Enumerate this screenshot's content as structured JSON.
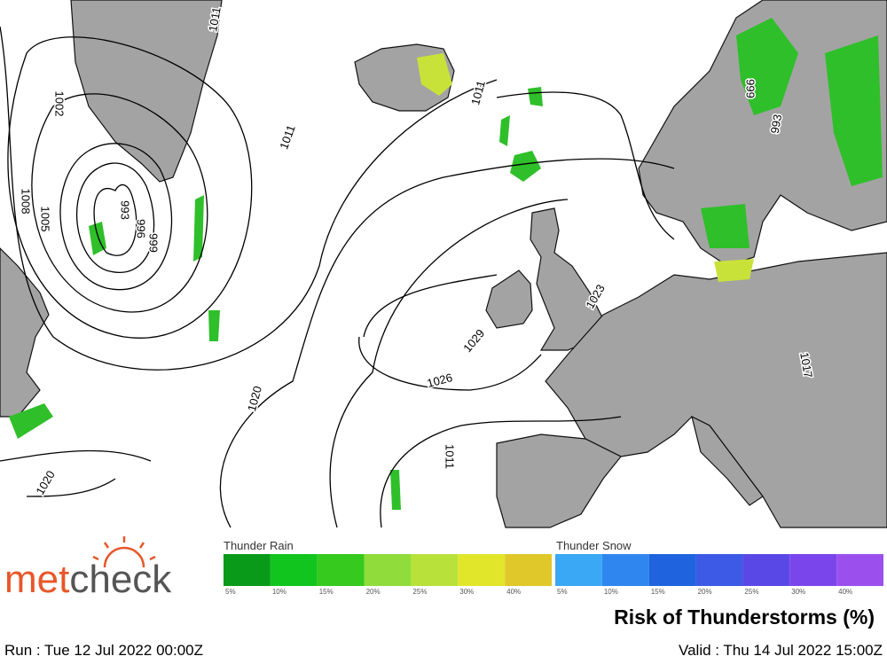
{
  "logo": {
    "parts": [
      "met",
      "check"
    ]
  },
  "map": {
    "isobar_labels": [
      "1011",
      "1002",
      "1008",
      "1005",
      "993",
      "996",
      "999",
      "1011",
      "1011",
      "1020",
      "1020",
      "1029",
      "1026",
      "1023",
      "999",
      "993",
      "1011",
      "1017"
    ]
  },
  "legend": {
    "rain": {
      "title": "Thunder Rain",
      "labels": [
        "5%",
        "10%",
        "15%",
        "20%",
        "25%",
        "30%",
        "40%"
      ],
      "colors": [
        "#0a9a1a",
        "#12c41e",
        "#36c91e",
        "#8fdc3a",
        "#b8e23a",
        "#e2e62a",
        "#e0c82a"
      ]
    },
    "snow": {
      "title": "Thunder Snow",
      "labels": [
        "5%",
        "10%",
        "15%",
        "20%",
        "25%",
        "30%",
        "40%"
      ],
      "colors": [
        "#3aa8f5",
        "#2f86ee",
        "#1f64de",
        "#3d5ae6",
        "#5a48e6",
        "#7a46ec",
        "#9b50ee"
      ]
    }
  },
  "title": "Risk of Thunderstorms (%)",
  "run": "Run : Tue 12 Jul 2022 00:00Z",
  "valid": "Valid : Thu 14 Jul 2022 15:00Z"
}
